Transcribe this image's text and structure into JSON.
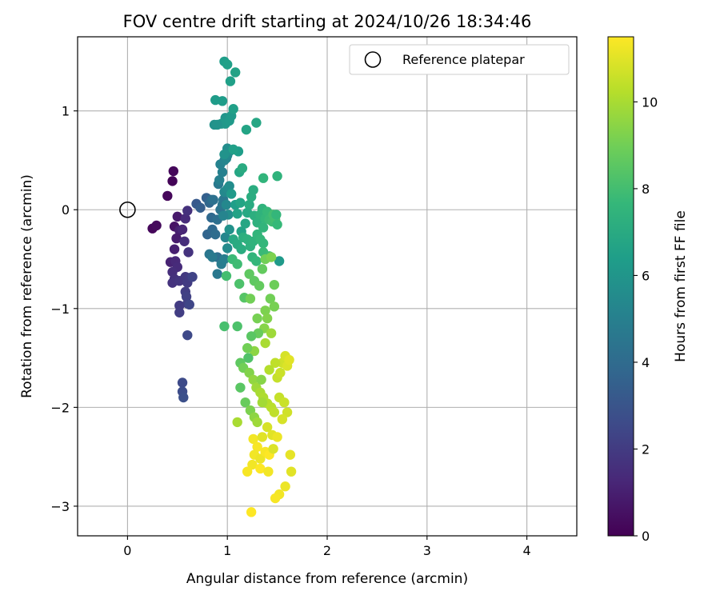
{
  "chart_data": {
    "type": "scatter",
    "title": "FOV centre drift starting at 2024/10/26 18:34:46",
    "xlabel": "Angular distance from reference (arcmin)",
    "ylabel": "Rotation from reference (arcmin)",
    "xlim": [
      -0.5,
      4.5
    ],
    "ylim": [
      -3.3,
      1.75
    ],
    "xticks": [
      "0",
      "1",
      "2",
      "3",
      "4"
    ],
    "yticks": [
      "−3",
      "−2",
      "−1",
      "0",
      "1"
    ],
    "grid": true,
    "legend": {
      "position": "top-right",
      "entries": [
        "Reference platepar"
      ]
    },
    "reference": {
      "name": "Reference platepar",
      "x": 0,
      "y": 0
    },
    "colorbar": {
      "label": "Hours from first FF file",
      "range": [
        0,
        11.5
      ],
      "ticks": [
        "0",
        "2",
        "4",
        "6",
        "8",
        "10"
      ],
      "colormap": "viridis",
      "stops": [
        "#440154",
        "#482878",
        "#3e4a89",
        "#31688e",
        "#26828e",
        "#1f9e89",
        "#35b779",
        "#6ece58",
        "#b5de2b",
        "#fde725"
      ]
    },
    "series": [
      {
        "points": [
          [
            0.25,
            -0.19,
            0.2
          ],
          [
            0.29,
            -0.16,
            0.3
          ],
          [
            0.4,
            0.14,
            0.2
          ],
          [
            0.45,
            0.29,
            0.1
          ],
          [
            0.46,
            0.39,
            0.2
          ],
          [
            0.47,
            -0.17,
            0.6
          ],
          [
            0.5,
            -0.07,
            0.8
          ],
          [
            0.52,
            -0.21,
            1.0
          ],
          [
            0.49,
            -0.29,
            0.9
          ],
          [
            0.55,
            -0.2,
            1.2
          ],
          [
            0.58,
            -0.09,
            1.4
          ],
          [
            0.6,
            -0.01,
            1.6
          ],
          [
            0.57,
            -0.32,
            1.5
          ],
          [
            0.61,
            -0.43,
            1.7
          ],
          [
            0.47,
            -0.4,
            1.0
          ],
          [
            0.43,
            -0.53,
            1.1
          ],
          [
            0.48,
            -0.52,
            1.3
          ],
          [
            0.5,
            -0.58,
            1.4
          ],
          [
            0.45,
            -0.63,
            1.5
          ],
          [
            0.47,
            -0.7,
            1.6
          ],
          [
            0.45,
            -0.74,
            1.7
          ],
          [
            0.52,
            -0.72,
            1.8
          ],
          [
            0.58,
            -0.68,
            1.9
          ],
          [
            0.6,
            -0.74,
            2.0
          ],
          [
            0.62,
            -0.69,
            2.0
          ],
          [
            0.58,
            -0.83,
            2.1
          ],
          [
            0.59,
            -0.88,
            2.2
          ],
          [
            0.6,
            -0.95,
            2.2
          ],
          [
            0.52,
            -0.97,
            2.0
          ],
          [
            0.52,
            -1.04,
            2.1
          ],
          [
            0.65,
            -0.68,
            2.3
          ],
          [
            0.62,
            -0.96,
            2.4
          ],
          [
            0.6,
            -1.27,
            2.5
          ],
          [
            0.55,
            -1.75,
            2.6
          ],
          [
            0.55,
            -1.84,
            2.7
          ],
          [
            0.56,
            -1.9,
            2.8
          ],
          [
            0.69,
            0.06,
            3.2
          ],
          [
            0.73,
            0.02,
            3.4
          ],
          [
            0.79,
            0.12,
            3.5
          ],
          [
            0.82,
            0.07,
            3.8
          ],
          [
            0.84,
            0.1,
            4.0
          ],
          [
            0.8,
            -0.25,
            3.7
          ],
          [
            0.84,
            -0.08,
            3.9
          ],
          [
            0.85,
            -0.2,
            3.9
          ],
          [
            0.88,
            -0.25,
            4.1
          ],
          [
            0.9,
            -0.1,
            4.2
          ],
          [
            0.86,
            0.1,
            4.3
          ],
          [
            0.93,
            0.0,
            4.4
          ],
          [
            0.95,
            0.05,
            4.5
          ],
          [
            0.96,
            0.1,
            4.6
          ],
          [
            0.9,
            -0.48,
            4.2
          ],
          [
            0.82,
            -0.45,
            4.5
          ],
          [
            0.85,
            -0.48,
            4.7
          ],
          [
            0.9,
            -0.65,
            4.6
          ],
          [
            0.94,
            -0.55,
            4.8
          ],
          [
            0.97,
            -0.5,
            4.9
          ],
          [
            0.91,
            0.26,
            4.6
          ],
          [
            0.92,
            0.3,
            5.0
          ],
          [
            0.95,
            0.38,
            5.0
          ],
          [
            0.93,
            0.46,
            5.1
          ],
          [
            0.97,
            0.5,
            5.2
          ],
          [
            0.99,
            0.52,
            5.3
          ],
          [
            1.0,
            0.55,
            5.4
          ],
          [
            1.02,
            0.59,
            5.5
          ],
          [
            1.0,
            0.62,
            5.6
          ],
          [
            1.03,
            0.6,
            5.7
          ],
          [
            0.97,
            0.18,
            5.4
          ],
          [
            1.0,
            0.21,
            5.5
          ],
          [
            1.02,
            0.24,
            5.6
          ],
          [
            0.99,
            0.05,
            5.4
          ],
          [
            1.01,
            -0.05,
            5.6
          ],
          [
            0.96,
            -0.06,
            5.2
          ],
          [
            0.98,
            -0.28,
            5.3
          ],
          [
            1.02,
            -0.2,
            5.8
          ],
          [
            1.0,
            -0.39,
            5.5
          ],
          [
            0.97,
            0.56,
            5.9
          ],
          [
            0.98,
            0.93,
            6.0
          ],
          [
            0.94,
            0.87,
            6.1
          ],
          [
            0.98,
            0.87,
            6.1
          ],
          [
            1.02,
            0.9,
            6.2
          ],
          [
            1.04,
            0.95,
            6.2
          ],
          [
            0.87,
            0.86,
            5.8
          ],
          [
            0.9,
            0.86,
            5.9
          ],
          [
            0.88,
            1.11,
            6.3
          ],
          [
            0.95,
            1.1,
            6.3
          ],
          [
            0.97,
            1.5,
            6.4
          ],
          [
            1.0,
            1.47,
            6.5
          ],
          [
            1.03,
            1.3,
            6.5
          ],
          [
            1.08,
            1.39,
            6.6
          ],
          [
            1.06,
            1.02,
            6.5
          ],
          [
            1.11,
            0.59,
            6.4
          ],
          [
            1.06,
            0.61,
            6.5
          ],
          [
            1.19,
            0.81,
            6.7
          ],
          [
            1.29,
            0.88,
            6.8
          ],
          [
            1.12,
            0.38,
            6.8
          ],
          [
            1.15,
            0.42,
            7.0
          ],
          [
            1.04,
            0.16,
            6.2
          ],
          [
            1.08,
            0.05,
            6.4
          ],
          [
            1.1,
            -0.04,
            6.6
          ],
          [
            1.13,
            0.07,
            6.7
          ],
          [
            1.14,
            -0.22,
            6.6
          ],
          [
            1.18,
            -0.14,
            6.8
          ],
          [
            1.2,
            -0.03,
            6.9
          ],
          [
            1.22,
            0.05,
            7.0
          ],
          [
            1.24,
            0.13,
            7.1
          ],
          [
            1.26,
            0.2,
            7.1
          ],
          [
            1.27,
            -0.06,
            7.2
          ],
          [
            1.3,
            -0.13,
            7.3
          ],
          [
            1.33,
            -0.05,
            7.4
          ],
          [
            1.35,
            0.01,
            7.4
          ],
          [
            1.36,
            -0.18,
            7.5
          ],
          [
            1.38,
            -0.09,
            7.6
          ],
          [
            1.4,
            -0.02,
            7.7
          ],
          [
            1.42,
            -0.1,
            7.8
          ],
          [
            1.45,
            -0.12,
            7.9
          ],
          [
            1.46,
            -0.05,
            8.0
          ],
          [
            1.48,
            -0.1,
            8.0
          ],
          [
            1.5,
            -0.15,
            7.7
          ],
          [
            1.49,
            -0.05,
            7.6
          ],
          [
            1.36,
            0.32,
            7.5
          ],
          [
            1.5,
            0.34,
            7.4
          ],
          [
            1.06,
            -0.3,
            6.9
          ],
          [
            1.1,
            -0.35,
            7.0
          ],
          [
            1.14,
            -0.4,
            7.1
          ],
          [
            1.16,
            -0.28,
            7.2
          ],
          [
            1.2,
            -0.3,
            7.3
          ],
          [
            1.23,
            -0.37,
            7.3
          ],
          [
            1.26,
            -0.32,
            7.4
          ],
          [
            1.3,
            -0.25,
            7.5
          ],
          [
            1.33,
            -0.3,
            7.6
          ],
          [
            1.36,
            -0.34,
            7.6
          ],
          [
            1.25,
            -0.48,
            7.5
          ],
          [
            1.29,
            -0.52,
            7.6
          ],
          [
            1.05,
            -0.5,
            7.8
          ],
          [
            1.1,
            -0.55,
            7.9
          ],
          [
            1.36,
            -0.43,
            7.8
          ],
          [
            1.42,
            -0.47,
            7.9
          ],
          [
            1.52,
            -0.52,
            6.2
          ],
          [
            1.12,
            -0.75,
            8.2
          ],
          [
            0.99,
            -0.67,
            8.0
          ],
          [
            0.97,
            -1.18,
            8.1
          ],
          [
            1.1,
            -1.18,
            8.2
          ],
          [
            1.17,
            -0.89,
            8.4
          ],
          [
            1.22,
            -0.65,
            8.6
          ],
          [
            1.27,
            -0.72,
            8.6
          ],
          [
            1.32,
            -0.77,
            8.7
          ],
          [
            1.35,
            -0.6,
            8.7
          ],
          [
            1.38,
            -0.5,
            9.0
          ],
          [
            1.44,
            -0.48,
            9.2
          ],
          [
            1.47,
            -0.76,
            8.9
          ],
          [
            1.43,
            -0.9,
            9.0
          ],
          [
            1.47,
            -0.98,
            9.1
          ],
          [
            1.38,
            -1.02,
            9.2
          ],
          [
            1.4,
            -1.1,
            9.3
          ],
          [
            1.23,
            -0.9,
            9.0
          ],
          [
            1.3,
            -1.1,
            9.1
          ],
          [
            1.37,
            -1.2,
            9.4
          ],
          [
            1.31,
            -1.25,
            8.8
          ],
          [
            1.24,
            -1.28,
            8.5
          ],
          [
            1.27,
            -1.43,
            9.5
          ],
          [
            1.21,
            -1.5,
            8.3
          ],
          [
            1.13,
            -1.55,
            8.6
          ],
          [
            1.16,
            -1.6,
            9.0
          ],
          [
            1.22,
            -1.65,
            9.3
          ],
          [
            1.26,
            -1.72,
            9.6
          ],
          [
            1.29,
            -1.8,
            9.8
          ],
          [
            1.33,
            -1.85,
            10.0
          ],
          [
            1.36,
            -1.9,
            10.1
          ],
          [
            1.4,
            -1.96,
            10.2
          ],
          [
            1.44,
            -2.0,
            10.3
          ],
          [
            1.47,
            -2.05,
            10.4
          ],
          [
            1.5,
            -1.7,
            10.5
          ],
          [
            1.53,
            -1.65,
            10.6
          ],
          [
            1.55,
            -1.55,
            10.7
          ],
          [
            1.58,
            -1.48,
            10.8
          ],
          [
            1.6,
            -1.58,
            10.9
          ],
          [
            1.62,
            -1.52,
            11.0
          ],
          [
            1.48,
            -1.55,
            10.4
          ],
          [
            1.42,
            -1.62,
            10.2
          ],
          [
            1.38,
            -1.35,
            10.0
          ],
          [
            1.44,
            -1.25,
            9.8
          ],
          [
            1.52,
            -1.9,
            10.5
          ],
          [
            1.57,
            -1.95,
            10.6
          ],
          [
            1.6,
            -2.05,
            10.7
          ],
          [
            1.55,
            -2.12,
            10.8
          ],
          [
            1.13,
            -1.8,
            8.5
          ],
          [
            1.18,
            -1.95,
            8.8
          ],
          [
            1.23,
            -2.03,
            9.2
          ],
          [
            1.27,
            -2.1,
            9.5
          ],
          [
            1.3,
            -2.15,
            9.8
          ],
          [
            1.1,
            -2.15,
            10.0
          ],
          [
            1.35,
            -1.95,
            9.9
          ],
          [
            1.4,
            -2.2,
            10.8
          ],
          [
            1.45,
            -2.28,
            11.0
          ],
          [
            1.5,
            -2.3,
            11.2
          ],
          [
            1.26,
            -2.32,
            11.3
          ],
          [
            1.3,
            -2.4,
            11.4
          ],
          [
            1.27,
            -2.48,
            11.3
          ],
          [
            1.33,
            -2.52,
            11.2
          ],
          [
            1.38,
            -2.45,
            11.4
          ],
          [
            1.42,
            -2.48,
            11.5
          ],
          [
            1.25,
            -2.58,
            11.3
          ],
          [
            1.2,
            -2.65,
            11.4
          ],
          [
            1.33,
            -2.62,
            11.5
          ],
          [
            1.41,
            -2.65,
            11.3
          ],
          [
            1.63,
            -2.48,
            11.1
          ],
          [
            1.64,
            -2.65,
            11.0
          ],
          [
            1.58,
            -2.8,
            11.2
          ],
          [
            1.52,
            -2.88,
            11.3
          ],
          [
            1.48,
            -2.92,
            11.4
          ],
          [
            1.24,
            -3.06,
            11.5
          ],
          [
            1.35,
            -2.3,
            11.0
          ],
          [
            1.46,
            -2.42,
            10.9
          ],
          [
            1.2,
            -1.4,
            9.0
          ],
          [
            1.34,
            -1.72,
            9.4
          ]
        ]
      }
    ]
  }
}
